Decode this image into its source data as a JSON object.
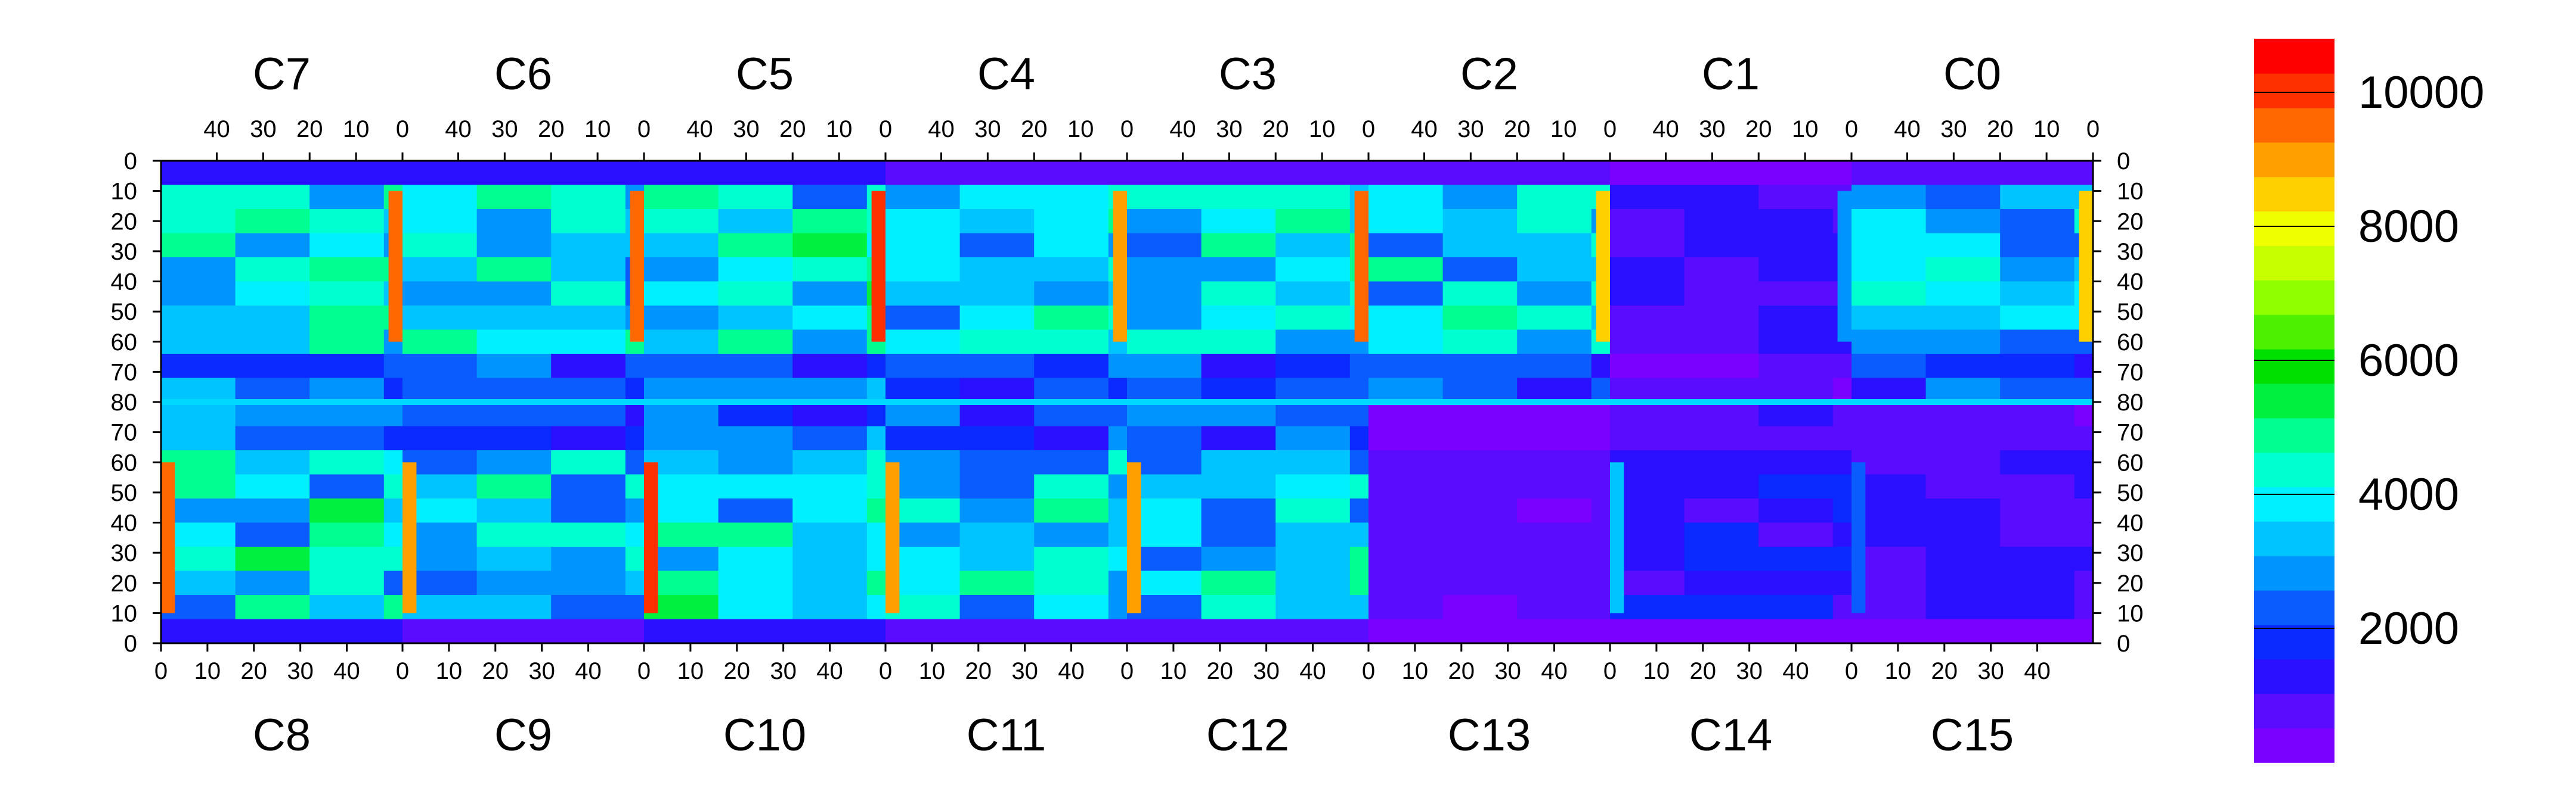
{
  "chart_data": {
    "type": "heatmap",
    "title": "",
    "top_chip_labels": [
      "C7",
      "C6",
      "C5",
      "C4",
      "C3",
      "C2",
      "C1",
      "C0"
    ],
    "bottom_chip_labels": [
      "C8",
      "C9",
      "C10",
      "C11",
      "C12",
      "C13",
      "C14",
      "C15"
    ],
    "top_x_tick_labels": [
      "40",
      "30",
      "20",
      "10",
      "0"
    ],
    "bottom_x_tick_labels": [
      "0",
      "10",
      "20",
      "30",
      "40"
    ],
    "left_y_tick_labels": [
      "0",
      "10",
      "20",
      "30",
      "40",
      "50",
      "60",
      "70",
      "80",
      "70",
      "60",
      "50",
      "40",
      "30",
      "20",
      "10",
      "0"
    ],
    "right_y_tick_labels": [
      "0",
      "10",
      "20",
      "30",
      "40",
      "50",
      "60",
      "70",
      "80",
      "70",
      "60",
      "50",
      "40",
      "30",
      "20",
      "10",
      "0"
    ],
    "columns_per_chip": 52,
    "rows_per_half": 80,
    "colorbar": {
      "min": 0,
      "max": 10800,
      "tick_values": [
        2000,
        4000,
        6000,
        8000,
        10000
      ],
      "tick_labels": [
        "2000",
        "4000",
        "6000",
        "8000",
        "10000"
      ],
      "colors": [
        "#7a00ff",
        "#5a0cff",
        "#2a10ff",
        "#0a2aff",
        "#0a5cff",
        "#0094ff",
        "#00c4ff",
        "#00f0ff",
        "#00ffd0",
        "#00ff90",
        "#00f040",
        "#00e000",
        "#4cf000",
        "#90ff00",
        "#c8ff00",
        "#f0ff00",
        "#ffd000",
        "#ffa000",
        "#ff6800",
        "#ff3000",
        "#ff0000"
      ]
    },
    "chips": [
      {
        "name": "C7",
        "typical_value": 4200,
        "dense_column_at_0": true,
        "note_low_bottom_half": false
      },
      {
        "name": "C6",
        "typical_value": 4200,
        "dense_column_at_0": true
      },
      {
        "name": "C5",
        "typical_value": 4300,
        "dense_column_at_0": true
      },
      {
        "name": "C4",
        "typical_value": 4000,
        "dense_column_at_0": true
      },
      {
        "name": "C3",
        "typical_value": 4100,
        "dense_column_at_0": true
      },
      {
        "name": "C2",
        "typical_value": 3800,
        "dense_column_at_0": true
      },
      {
        "name": "C1",
        "typical_value": 1200,
        "dense_column_at_0": true
      },
      {
        "name": "C0",
        "typical_value": 3600,
        "dense_column_at_0": true
      },
      {
        "name": "C8",
        "typical_value": 4200,
        "dense_column_at_0": true
      },
      {
        "name": "C9",
        "typical_value": 4000,
        "dense_column_at_0": true
      },
      {
        "name": "C10",
        "typical_value": 4300,
        "dense_column_at_0": true
      },
      {
        "name": "C11",
        "typical_value": 3900,
        "dense_column_at_0": true
      },
      {
        "name": "C12",
        "typical_value": 4000,
        "dense_column_at_0": true
      },
      {
        "name": "C13",
        "typical_value": 800,
        "dense_column_at_0": false
      },
      {
        "name": "C14",
        "typical_value": 1500,
        "dense_column_at_0": true
      },
      {
        "name": "C15",
        "typical_value": 1100,
        "dense_column_at_0": true
      }
    ]
  }
}
